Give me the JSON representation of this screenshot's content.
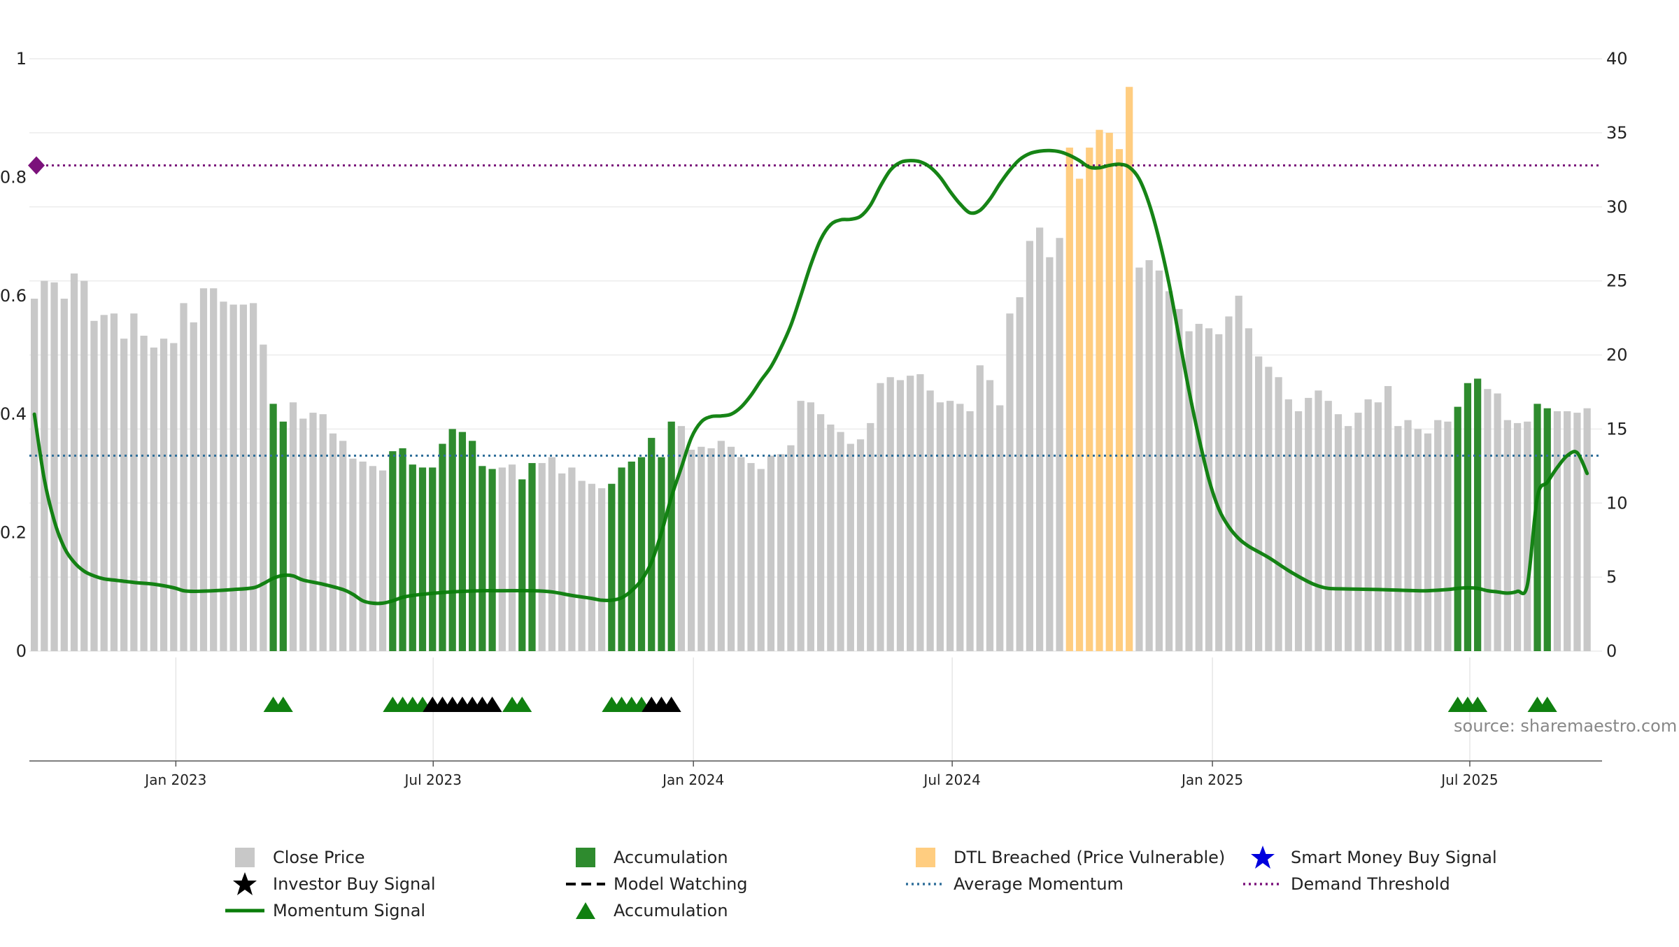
{
  "chart_data": {
    "type": "bar",
    "title": "",
    "source_label": "source: sharemaestro.com",
    "colors": {
      "close_price": "#c8c8c8",
      "accumulation": "#2e8b2e",
      "dtl_breached": "#ffcd80",
      "momentum": "#0a7d0a",
      "average_momentum": "#2f6f9a",
      "demand_threshold": "#7b127b",
      "investor_signal": "#000000",
      "smart_money_signal": "#0000dd"
    },
    "x_ticks": [
      "Jan 2023",
      "Jul 2023",
      "Jan 2024",
      "Jul 2024",
      "Jan 2025",
      "Jul 2025"
    ],
    "x_tick_weeks": [
      14.714,
      40.571,
      66.714,
      92.714,
      118.857,
      144.714
    ],
    "y_left": {
      "ticks": [
        "0",
        "0.2",
        "0.4",
        "0.6",
        "0.8",
        "1"
      ],
      "ylim": [
        0,
        1
      ]
    },
    "y_right": {
      "ticks": [
        "0",
        "5",
        "10",
        "15",
        "20",
        "25",
        "30",
        "35",
        "40"
      ],
      "ylim": [
        0,
        40
      ]
    },
    "weeks": 158,
    "price_values": [
      23.8,
      25,
      24.9,
      23.8,
      25.5,
      25,
      22.3,
      22.7,
      22.8,
      21.1,
      22.8,
      21.3,
      20.5,
      21.1,
      20.8,
      23.5,
      22.2,
      24.5,
      24.5,
      23.6,
      23.4,
      23.4,
      23.5,
      20.7,
      16.7,
      15.5,
      16.8,
      15.7,
      16.1,
      16,
      14.7,
      14.2,
      13,
      12.8,
      12.5,
      12.2,
      13.5,
      13.7,
      12.6,
      12.4,
      12.4,
      14,
      15,
      14.8,
      14.2,
      12.5,
      12.3,
      12.4,
      12.6,
      11.6,
      12.7,
      12.7,
      13.1,
      12,
      12.4,
      11.5,
      11.3,
      11,
      11.3,
      12.4,
      12.8,
      13.1,
      14.4,
      13.1,
      15.5,
      15.2,
      13.6,
      13.8,
      13.7,
      14.2,
      13.8,
      13.1,
      12.7,
      12.3,
      13.2,
      13.3,
      13.9,
      16.9,
      16.8,
      16,
      15.3,
      14.8,
      14,
      14.3,
      15.4,
      18.1,
      18.5,
      18.3,
      18.6,
      18.7,
      17.6,
      16.8,
      16.9,
      16.7,
      16.2,
      19.3,
      18.3,
      16.6,
      22.8,
      23.9,
      27.7,
      28.6,
      26.6,
      27.9,
      34,
      31.9,
      34,
      35.2,
      35,
      33.9,
      38.1,
      25.9,
      26.4,
      25.7,
      24.3,
      23.1,
      21.6,
      22.1,
      21.8,
      21.4,
      22.6,
      24,
      21.8,
      19.9,
      19.2,
      18.5,
      17,
      16.2,
      17.1,
      17.6,
      16.9,
      16,
      15.2,
      16.1,
      17,
      16.8,
      17.9,
      15.2,
      15.6,
      15,
      14.7,
      15.6,
      15.5,
      16.5,
      18.1,
      18.4,
      17.7,
      17.4,
      15.6,
      15.4,
      15.5,
      16.7,
      16.4,
      16.2,
      16.2,
      16.1,
      16.4
    ],
    "accumulation_weeks": [
      24,
      25,
      36,
      37,
      38,
      39,
      40,
      41,
      42,
      43,
      44,
      45,
      46,
      49,
      50,
      58,
      59,
      60,
      61,
      62,
      63,
      64,
      143,
      144,
      145,
      151,
      152
    ],
    "dtl_weeks": [
      104,
      105,
      106,
      107,
      108,
      109,
      110
    ],
    "momentum_points": [
      [
        0,
        0.4
      ],
      [
        1,
        0.29
      ],
      [
        2,
        0.22
      ],
      [
        3,
        0.175
      ],
      [
        4,
        0.15
      ],
      [
        5,
        0.135
      ],
      [
        6,
        0.127
      ],
      [
        7,
        0.122
      ],
      [
        8,
        0.12
      ],
      [
        10,
        0.116
      ],
      [
        12,
        0.113
      ],
      [
        14,
        0.107
      ],
      [
        15,
        0.102
      ],
      [
        16,
        0.101
      ],
      [
        18,
        0.102
      ],
      [
        20,
        0.104
      ],
      [
        22,
        0.107
      ],
      [
        23,
        0.114
      ],
      [
        24,
        0.123
      ],
      [
        25,
        0.128
      ],
      [
        26,
        0.127
      ],
      [
        27,
        0.12
      ],
      [
        29,
        0.113
      ],
      [
        31,
        0.104
      ],
      [
        32,
        0.096
      ],
      [
        33,
        0.085
      ],
      [
        34,
        0.081
      ],
      [
        35,
        0.081
      ],
      [
        36,
        0.085
      ],
      [
        37,
        0.091
      ],
      [
        38,
        0.094
      ],
      [
        39,
        0.096
      ],
      [
        41,
        0.099
      ],
      [
        43,
        0.101
      ],
      [
        45,
        0.102
      ],
      [
        47,
        0.102
      ],
      [
        50,
        0.102
      ],
      [
        52,
        0.1
      ],
      [
        54,
        0.094
      ],
      [
        56,
        0.089
      ],
      [
        57,
        0.086
      ],
      [
        58,
        0.086
      ],
      [
        59,
        0.09
      ],
      [
        60,
        0.102
      ],
      [
        61,
        0.12
      ],
      [
        62,
        0.15
      ],
      [
        63,
        0.2
      ],
      [
        64,
        0.26
      ],
      [
        65,
        0.31
      ],
      [
        66,
        0.36
      ],
      [
        67,
        0.387
      ],
      [
        68,
        0.396
      ],
      [
        69,
        0.397
      ],
      [
        70,
        0.4
      ],
      [
        71,
        0.412
      ],
      [
        72,
        0.432
      ],
      [
        73,
        0.457
      ],
      [
        74,
        0.48
      ],
      [
        75,
        0.512
      ],
      [
        76,
        0.55
      ],
      [
        77,
        0.6
      ],
      [
        78,
        0.652
      ],
      [
        79,
        0.695
      ],
      [
        80,
        0.72
      ],
      [
        81,
        0.728
      ],
      [
        82,
        0.729
      ],
      [
        83,
        0.734
      ],
      [
        84,
        0.753
      ],
      [
        85,
        0.785
      ],
      [
        86,
        0.812
      ],
      [
        87,
        0.825
      ],
      [
        88,
        0.828
      ],
      [
        89,
        0.826
      ],
      [
        90,
        0.817
      ],
      [
        91,
        0.8
      ],
      [
        92,
        0.776
      ],
      [
        93,
        0.755
      ],
      [
        94,
        0.74
      ],
      [
        95,
        0.744
      ],
      [
        96,
        0.763
      ],
      [
        97,
        0.789
      ],
      [
        98,
        0.812
      ],
      [
        99,
        0.83
      ],
      [
        100,
        0.84
      ],
      [
        101,
        0.844
      ],
      [
        102,
        0.845
      ],
      [
        103,
        0.843
      ],
      [
        104,
        0.837
      ],
      [
        105,
        0.828
      ],
      [
        106,
        0.817
      ],
      [
        107,
        0.816
      ],
      [
        108,
        0.82
      ],
      [
        109,
        0.822
      ],
      [
        110,
        0.817
      ],
      [
        111,
        0.797
      ],
      [
        112,
        0.755
      ],
      [
        113,
        0.695
      ],
      [
        114,
        0.62
      ],
      [
        115,
        0.53
      ],
      [
        116,
        0.44
      ],
      [
        117,
        0.36
      ],
      [
        118,
        0.29
      ],
      [
        119,
        0.24
      ],
      [
        120,
        0.21
      ],
      [
        121,
        0.19
      ],
      [
        122,
        0.177
      ],
      [
        124,
        0.158
      ],
      [
        126,
        0.136
      ],
      [
        128,
        0.117
      ],
      [
        129,
        0.11
      ],
      [
        130,
        0.106
      ],
      [
        132,
        0.105
      ],
      [
        135,
        0.104
      ],
      [
        137,
        0.103
      ],
      [
        139,
        0.102
      ],
      [
        140,
        0.102
      ],
      [
        142,
        0.104
      ],
      [
        143,
        0.106
      ],
      [
        144,
        0.107
      ],
      [
        145,
        0.106
      ],
      [
        146,
        0.102
      ],
      [
        147,
        0.1
      ],
      [
        148,
        0.098
      ],
      [
        149,
        0.101
      ],
      [
        150,
        0.112
      ],
      [
        151,
        0.26
      ],
      [
        152,
        0.285
      ],
      [
        153,
        0.31
      ],
      [
        154,
        0.33
      ],
      [
        155,
        0.335
      ],
      [
        156,
        0.3
      ]
    ],
    "average_momentum": 0.33,
    "demand_threshold": 0.82,
    "accumulation_markers": [
      24.5,
      25.5,
      36.5,
      37.5,
      38.5,
      39.5,
      48.5,
      49.5,
      58.5,
      59.5,
      60.5,
      61.5,
      143.5,
      144.5,
      145.5,
      151.5,
      152.5
    ],
    "investor_signal_markers": [
      40.5,
      41.5,
      42.5,
      43.5,
      44.5,
      45.5,
      46.5,
      62.5,
      63.5,
      64.5
    ],
    "legend": [
      {
        "key": "close_price",
        "label": "Close Price",
        "symbol": "square"
      },
      {
        "key": "accumulation",
        "label": "Accumulation",
        "symbol": "square"
      },
      {
        "key": "dtl_breached",
        "label": "DTL Breached (Price Vulnerable)",
        "symbol": "square"
      },
      {
        "key": "smart_money_signal",
        "label": "Smart Money Buy Signal",
        "symbol": "star"
      },
      {
        "key": "investor_signal",
        "label": "Investor Buy Signal",
        "symbol": "star"
      },
      {
        "key": "model_watching",
        "label": "Model Watching",
        "symbol": "dash"
      },
      {
        "key": "average_momentum",
        "label": "Average Momentum",
        "symbol": "dotline"
      },
      {
        "key": "demand_threshold",
        "label": "Demand Threshold",
        "symbol": "dotline"
      },
      {
        "key": "momentum",
        "label": "Momentum Signal",
        "symbol": "line"
      },
      {
        "key": "accumulation",
        "label": "Accumulation",
        "symbol": "triangle"
      }
    ]
  }
}
